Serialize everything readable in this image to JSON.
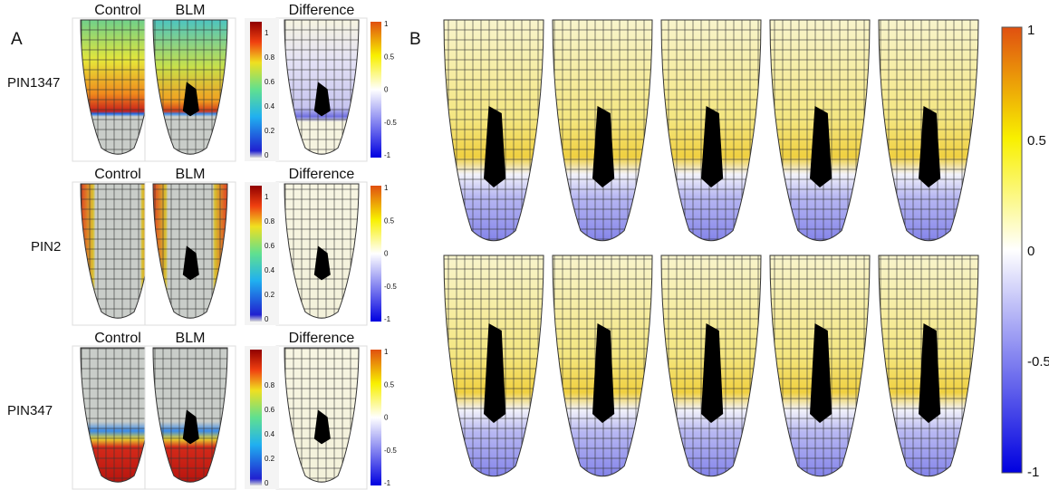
{
  "panels": [
    {
      "label": "A",
      "rows": [
        {
          "name": "PIN1347",
          "columns": [
            "Control",
            "BLM",
            "Difference"
          ],
          "colorbar_ticks": [
            "0",
            "0.2",
            "0.4",
            "0.6",
            "0.8",
            "1"
          ],
          "difference_ticks": [
            "-1",
            "-0.5",
            "0",
            "0.5",
            "1"
          ]
        },
        {
          "name": "PIN2",
          "columns": [
            "Control",
            "BLM",
            "Difference"
          ],
          "colorbar_ticks": [
            "0",
            "0.2",
            "0.4",
            "0.6",
            "0.8",
            "1"
          ],
          "difference_ticks": [
            "-1",
            "-0.5",
            "0",
            "0.5",
            "1"
          ]
        },
        {
          "name": "PIN347",
          "columns": [
            "Control",
            "BLM",
            "Difference"
          ],
          "colorbar_ticks": [
            "0",
            "0.2",
            "0.4",
            "0.6",
            "0.8"
          ],
          "difference_ticks": [
            "-1",
            "-0.5",
            "0",
            "0.5",
            "1"
          ]
        }
      ]
    },
    {
      "label": "B",
      "colorbar_ticks": [
        "-1",
        "-0.5",
        "0",
        "0.5",
        "1"
      ]
    }
  ]
}
